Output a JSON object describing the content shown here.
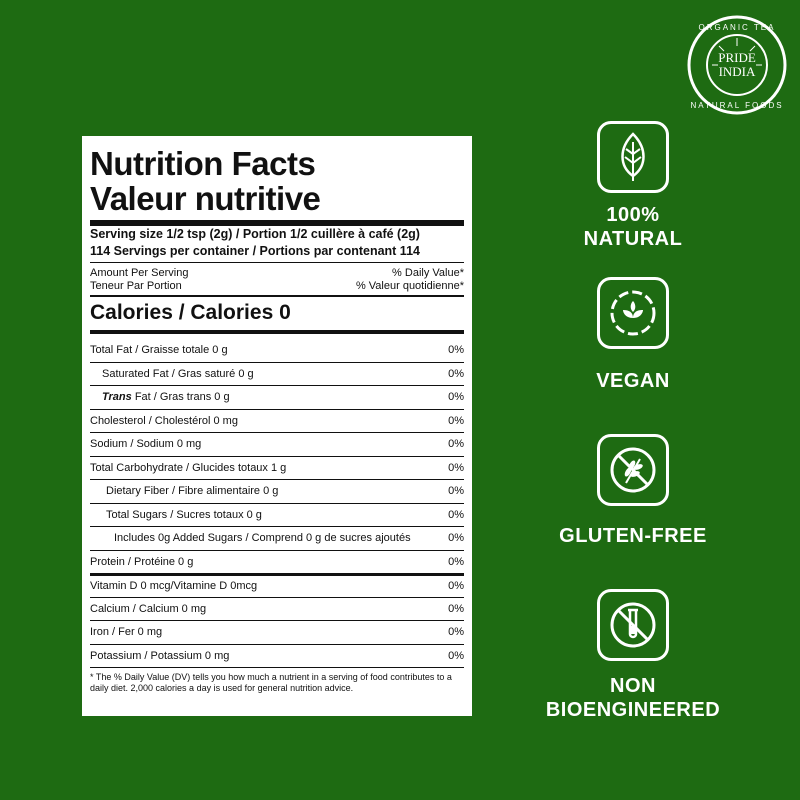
{
  "logo": {
    "text": "PRIDE OF INDIA",
    "ring_top": "ORGANIC TEA",
    "ring_bottom": "NATURAL FOODS"
  },
  "label": {
    "title1": "Nutrition Facts",
    "title2": "Valeur nutritive",
    "serving": "Serving size 1/2 tsp (2g)  / Portion 1/2 cuillère à café (2g)",
    "servings": "114 Servings per container / Portions par contenant 114",
    "amount1": "Amount Per Serving",
    "amount2": "Teneur Par Portion",
    "dv1": "% Daily Value*",
    "dv2": "% Valeur quotidienne*",
    "calories": "Calories / Calories 0",
    "rows": [
      {
        "name": "Total Fat / Graisse totale 0 g",
        "dv": "0%"
      },
      {
        "name": "Saturated Fat / Gras saturé 0 g",
        "dv": "0%"
      },
      {
        "name_em": "Trans",
        "name": " Fat / Gras trans 0 g",
        "dv": "0%"
      },
      {
        "name": "Cholesterol / Cholestérol 0 mg",
        "dv": "0%"
      },
      {
        "name": "Sodium / Sodium 0 mg",
        "dv": "0%"
      },
      {
        "name": "Total Carbohydrate / Glucides totaux 1 g",
        "dv": "0%"
      },
      {
        "name": "Dietary Fiber / Fibre alimentaire 0 g",
        "dv": "0%"
      },
      {
        "name": "Total Sugars / Sucres totaux 0 g",
        "dv": "0%"
      },
      {
        "name": "Includes 0g Added Sugars / Comprend 0 g de sucres ajoutés",
        "dv": "0%"
      },
      {
        "name": "Protein / Protéine 0 g",
        "dv": "0%"
      },
      {
        "name": "Vitamin D 0 mcg/Vitamine D 0mcg",
        "dv": "0%"
      },
      {
        "name": "Calcium / Calcium 0 mg",
        "dv": "0%"
      },
      {
        "name": "Iron / Fer 0 mg",
        "dv": "0%"
      },
      {
        "name": "Potassium / Potassium 0 mg",
        "dv": "0%"
      }
    ],
    "footnote": "* The % Daily Value (DV) tells you how much a nutrient in a serving of food contributes to a daily diet. 2,000 calories a day is used for general nutrition advice."
  },
  "badges": [
    {
      "icon": "leaf-icon",
      "line1": "100%",
      "line2": "NATURAL"
    },
    {
      "icon": "vegan-icon",
      "line1": "VEGAN"
    },
    {
      "icon": "no-wheat-icon",
      "line1": "GLUTEN-FREE"
    },
    {
      "icon": "no-test-tube-icon",
      "line1": "NON",
      "line2": "BIOENGINEERED"
    }
  ],
  "colors": {
    "background": "#1e6b12",
    "text": "#ffffff"
  }
}
